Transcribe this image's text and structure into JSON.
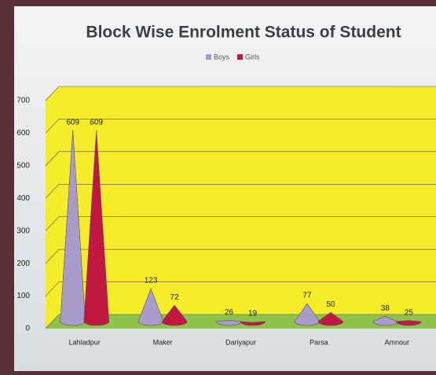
{
  "chart_data": {
    "type": "cone",
    "title": "Block Wise Enrolment Status of Student",
    "categories": [
      "Lahladpur",
      "Maker",
      "Dariyapur",
      "Parsa",
      "Amnour"
    ],
    "series": [
      {
        "name": "Boys",
        "color": "#a99ccb",
        "values": [
          609,
          123,
          26,
          77,
          38
        ]
      },
      {
        "name": "Girls",
        "color": "#c01840",
        "values": [
          609,
          72,
          19,
          50,
          25
        ]
      }
    ],
    "ylim": [
      0,
      700
    ],
    "yticks": [
      0,
      100,
      200,
      300,
      400,
      500,
      600,
      700
    ],
    "grid": true,
    "legend": "top"
  }
}
